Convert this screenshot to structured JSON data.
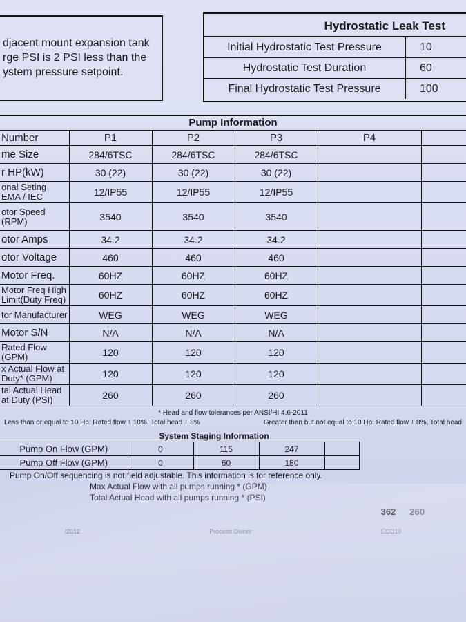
{
  "note": [
    "djacent mount expansion tank",
    "rge PSI is 2 PSI less than the",
    "ystem pressure setpoint."
  ],
  "hydro": {
    "title": "Hydrostatic Leak Test",
    "rows": [
      {
        "label": "Initial Hydrostatic Test Pressure",
        "value": "10"
      },
      {
        "label": "Hydrostatic Test Duration",
        "value": "60"
      },
      {
        "label": "Final Hydrostatic Test Pressure",
        "value": "100"
      }
    ]
  },
  "pump": {
    "title": "Pump Information",
    "header": [
      "Number",
      "P1",
      "P2",
      "P3",
      "P4"
    ],
    "rows": [
      {
        "label": "me Size",
        "v": [
          "284/6TSC",
          "284/6TSC",
          "284/6TSC",
          ""
        ]
      },
      {
        "label": "r HP(kW)",
        "v": [
          "30 (22)",
          "30 (22)",
          "30 (22)",
          ""
        ]
      },
      {
        "label": "onal Seting EMA / IEC",
        "v": [
          "12/IP55",
          "12/IP55",
          "12/IP55",
          ""
        ]
      },
      {
        "label": "otor Speed (RPM)",
        "v": [
          "3540",
          "3540",
          "3540",
          ""
        ]
      },
      {
        "label": "otor Amps",
        "v": [
          "34.2",
          "34.2",
          "34.2",
          ""
        ]
      },
      {
        "label": "otor Voltage",
        "v": [
          "460",
          "460",
          "460",
          ""
        ]
      },
      {
        "label": "Motor Freq.",
        "v": [
          "60HZ",
          "60HZ",
          "60HZ",
          ""
        ]
      },
      {
        "label": "Motor Freq High Limit(Duty Freq)",
        "v": [
          "60HZ",
          "60HZ",
          "60HZ",
          ""
        ]
      },
      {
        "label": "tor Manufacturer",
        "v": [
          "WEG",
          "WEG",
          "WEG",
          ""
        ]
      },
      {
        "label": "Motor S/N",
        "v": [
          "N/A",
          "N/A",
          "N/A",
          ""
        ]
      },
      {
        "label": "Rated Flow (GPM)",
        "v": [
          "120",
          "120",
          "120",
          ""
        ]
      },
      {
        "label": "x Actual Flow at Duty* (GPM)",
        "v": [
          "120",
          "120",
          "120",
          ""
        ]
      },
      {
        "label": "tal Actual Head at Duty (PSI)",
        "v": [
          "260",
          "260",
          "260",
          ""
        ]
      }
    ]
  },
  "tolerance": {
    "note": "* Head and flow tolerances per ANSI/HI 4.6-2011",
    "low": "Less than or equal to 10 Hp: Rated flow ± 10%, Total head ± 8%",
    "high": "Greater than but not equal to 10 Hp: Rated flow ± 8%, Total head"
  },
  "staging": {
    "title": "System Staging Information",
    "rows": [
      {
        "label": "Pump On Flow (GPM)",
        "v": [
          "0",
          "115",
          "247"
        ]
      },
      {
        "label": "Pump Off Flow (GPM)",
        "v": [
          "0",
          "60",
          "180"
        ]
      }
    ],
    "note": "Pump On/Off sequencing is not field adjustable. This information is for reference only.",
    "max_flow_label": "Max Actual Flow with all pumps running * (GPM)",
    "total_head_label": "Total Actual Head with all pumps running * (PSI)",
    "max_flow_value": "362",
    "total_head_value": "260"
  },
  "faint": {
    "date": "/2012",
    "owner": "Process Owner",
    "eco": "ECO10"
  }
}
